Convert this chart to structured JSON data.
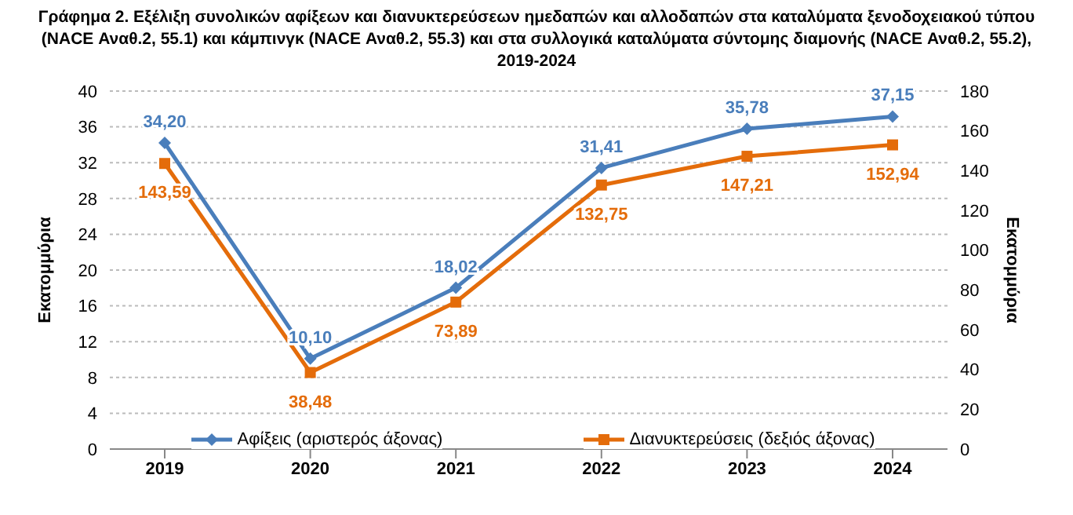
{
  "chart_data": {
    "type": "line",
    "title": "Γράφημα 2. Εξέλιξη συνολικών αφίξεων και διανυκτερεύσεων ημεδαπών και αλλοδαπών στα καταλύματα ξενοδοχειακού τύπου (NACE Αναθ.2, 55.1) και κάμπινγκ (NACE Αναθ.2, 55.3) και στα συλλογικά καταλύματα σύντομης διαμονής (NACE Αναθ.2, 55.2), 2019-2024",
    "categories": [
      "2019",
      "2020",
      "2021",
      "2022",
      "2023",
      "2024"
    ],
    "ylabel": "Εκατομμύρια",
    "y2label": "Εκατομμύρια",
    "ylim": [
      0,
      40
    ],
    "yticks": [
      0,
      4,
      8,
      12,
      16,
      20,
      24,
      28,
      32,
      36,
      40
    ],
    "y2lim": [
      0,
      180
    ],
    "y2ticks": [
      0,
      20,
      40,
      60,
      80,
      100,
      120,
      140,
      160,
      180
    ],
    "series": [
      {
        "name": "Αφίξεις (αριστερός άξονας)",
        "color": "#4a7ebb",
        "marker": "diamond",
        "values": [
          34.2,
          10.1,
          18.02,
          31.41,
          35.78,
          37.15
        ],
        "value_labels": [
          "34,20",
          "10,10",
          "18,02",
          "31,41",
          "35,78",
          "37,15"
        ]
      },
      {
        "name": "Διανυκτερεύσεις (δεξιός άξονας)",
        "color": "#e46c0a",
        "marker": "square",
        "axis": "y2",
        "values": [
          143.59,
          38.48,
          73.89,
          132.75,
          147.21,
          152.94
        ],
        "value_labels": [
          "143,59",
          "38,48",
          "73,89",
          "132,75",
          "147,21",
          "152,94"
        ]
      }
    ],
    "grid": "y",
    "legend": "bottom",
    "line_style": "solid"
  }
}
